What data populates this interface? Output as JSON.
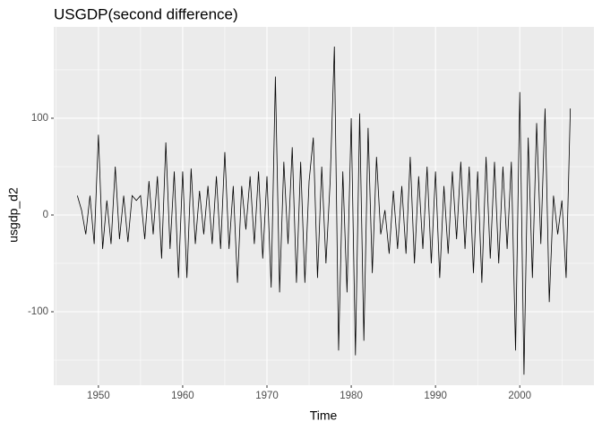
{
  "chart_data": {
    "type": "line",
    "title": "USGDP(second difference)",
    "xlabel": "Time",
    "ylabel": "usgdp_d2",
    "x": [
      1947.5,
      1948,
      1948.5,
      1949,
      1949.5,
      1950,
      1950.5,
      1951,
      1951.5,
      1952,
      1952.5,
      1953,
      1953.5,
      1954,
      1954.5,
      1955,
      1955.5,
      1956,
      1956.5,
      1957,
      1957.5,
      1958,
      1958.5,
      1959,
      1959.5,
      1960,
      1960.5,
      1961,
      1961.5,
      1962,
      1962.5,
      1963,
      1963.5,
      1964,
      1964.5,
      1965,
      1965.5,
      1966,
      1966.5,
      1967,
      1967.5,
      1968,
      1968.5,
      1969,
      1969.5,
      1970,
      1970.5,
      1971,
      1971.5,
      1972,
      1972.5,
      1973,
      1973.5,
      1974,
      1974.5,
      1975,
      1975.5,
      1976,
      1976.5,
      1977,
      1977.5,
      1978,
      1978.5,
      1979,
      1979.5,
      1980,
      1980.5,
      1981,
      1981.5,
      1982,
      1982.5,
      1983,
      1983.5,
      1984,
      1984.5,
      1985,
      1985.5,
      1986,
      1986.5,
      1987,
      1987.5,
      1988,
      1988.5,
      1989,
      1989.5,
      1990,
      1990.5,
      1991,
      1991.5,
      1992,
      1992.5,
      1993,
      1993.5,
      1994,
      1994.5,
      1995,
      1995.5,
      1996,
      1996.5,
      1997,
      1997.5,
      1998,
      1998.5,
      1999,
      1999.5,
      2000,
      2000.5,
      2001,
      2001.5,
      2002,
      2002.5,
      2003,
      2003.5,
      2004,
      2004.5,
      2005,
      2005.5,
      2006
    ],
    "series": [
      {
        "name": "usgdp_d2",
        "color": "#000000",
        "values": [
          20,
          5,
          -20,
          20,
          -30,
          83,
          -35,
          15,
          -30,
          50,
          -25,
          20,
          -28,
          20,
          15,
          20,
          -25,
          35,
          -20,
          40,
          -45,
          75,
          -35,
          45,
          -65,
          45,
          -65,
          48,
          -30,
          25,
          -20,
          30,
          -30,
          40,
          -35,
          65,
          -35,
          30,
          -70,
          30,
          -15,
          40,
          -30,
          45,
          -45,
          40,
          -75,
          143,
          -80,
          55,
          -30,
          70,
          -70,
          55,
          -70,
          35,
          80,
          -65,
          50,
          -50,
          35,
          174,
          -140,
          45,
          -80,
          100,
          -145,
          105,
          -130,
          90,
          -60,
          60,
          -20,
          5,
          -40,
          25,
          -35,
          30,
          -40,
          60,
          -50,
          40,
          -35,
          50,
          -50,
          45,
          -65,
          30,
          -40,
          45,
          -25,
          55,
          -35,
          50,
          -60,
          45,
          -70,
          60,
          -45,
          55,
          -50,
          50,
          -35,
          55,
          -140,
          127,
          -165,
          80,
          -65,
          95,
          -30,
          110,
          -90,
          20,
          -20,
          15,
          -65,
          110
        ]
      }
    ],
    "xlim": [
      1944.7,
      2008.8
    ],
    "xticks": [
      1950,
      1960,
      1970,
      1980,
      1990,
      2000
    ],
    "ylim": [
      -175.9,
      194.4
    ],
    "yticks": [
      -100,
      0,
      100
    ],
    "grid": true
  }
}
